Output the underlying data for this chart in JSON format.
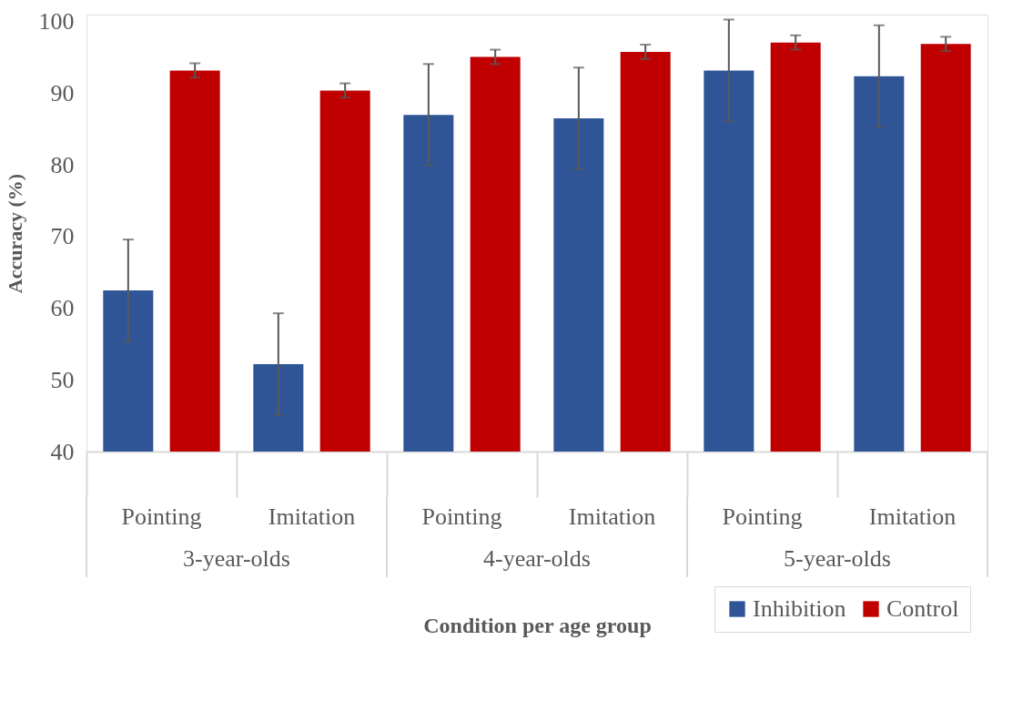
{
  "chart_data": {
    "type": "bar",
    "xlabel": "Condition per age group",
    "ylabel": "Accuracy (%)",
    "categories": [
      "Pointing",
      "Imitation",
      "Pointing",
      "Imitation",
      "Pointing",
      "Imitation"
    ],
    "annotations": [
      "3-year-olds",
      "4-year-olds",
      "5-year-olds"
    ],
    "series": [
      {
        "name": "Inhibition",
        "color": "#2f5597",
        "values": [
          62.5,
          52.2,
          87.0,
          86.5,
          93.2,
          92.4
        ],
        "errors": [
          7.1,
          7.1,
          7.1,
          7.1,
          7.1,
          7.1
        ]
      },
      {
        "name": "Control",
        "color": "#c00000",
        "values": [
          93.2,
          90.4,
          95.1,
          95.8,
          97.1,
          96.9
        ],
        "errors": [
          1.0,
          1.0,
          1.0,
          1.0,
          1.0,
          1.0
        ]
      }
    ],
    "ylim": [
      40,
      101
    ],
    "yticks": [
      40,
      50,
      60,
      70,
      80,
      90,
      100
    ],
    "grid": false,
    "legend": "bottom right"
  }
}
